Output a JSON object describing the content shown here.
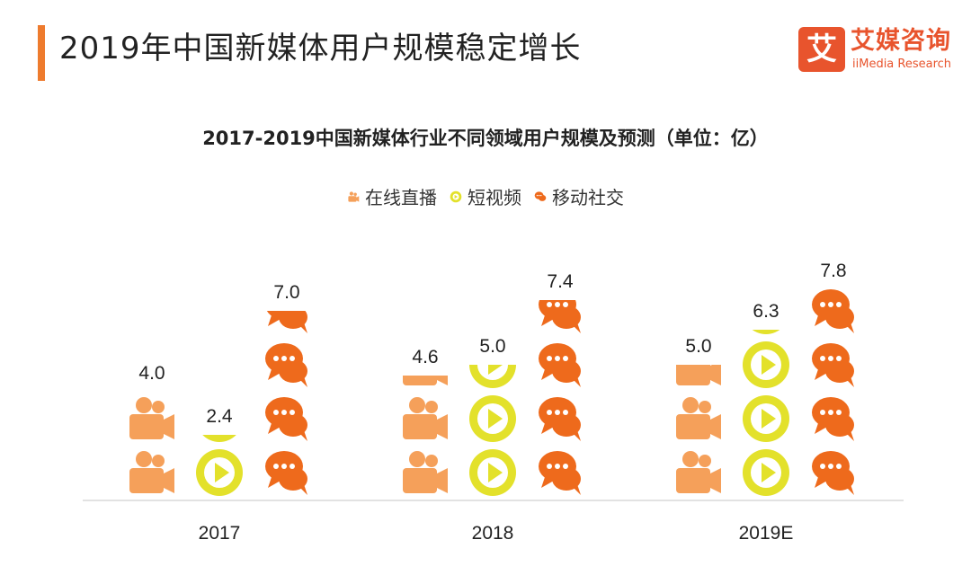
{
  "page": {
    "title": "2019年中国新媒体用户规模稳定增长"
  },
  "brand": {
    "mark": "艾",
    "name": "艾媒咨询",
    "name_en": "iiMedia Research"
  },
  "colors": {
    "accent": "#ee7b2e",
    "live": "#f5a05a",
    "video": "#e3e12b",
    "social": "#ee6a1c",
    "axis": "#d9d9d9"
  },
  "chart_data": {
    "type": "bar",
    "title": "2017-2019中国新媒体行业不同领域用户规模及预测（单位：亿）",
    "xlabel": "",
    "ylabel": "",
    "unit": "亿",
    "categories": [
      "2017",
      "2018",
      "2019E"
    ],
    "series": [
      {
        "name": "在线直播",
        "icon": "video-camera-icon",
        "color": "#f5a05a",
        "values": [
          4.0,
          4.6,
          5.0
        ],
        "labels": [
          "4.0",
          "4.6",
          "5.0"
        ]
      },
      {
        "name": "短视频",
        "icon": "play-button-icon",
        "color": "#e3e12b",
        "values": [
          2.4,
          5.0,
          6.3
        ],
        "labels": [
          "2.4",
          "5.0",
          "6.3"
        ]
      },
      {
        "name": "移动社交",
        "icon": "chat-bubble-icon",
        "color": "#ee6a1c",
        "values": [
          7.0,
          7.4,
          7.8
        ],
        "labels": [
          "7.0",
          "7.4",
          "7.8"
        ]
      }
    ],
    "encoding": "pictograph",
    "units_per_icon": 2,
    "ylim": [
      0,
      8
    ],
    "legend_position": "top-center",
    "grid": false
  }
}
